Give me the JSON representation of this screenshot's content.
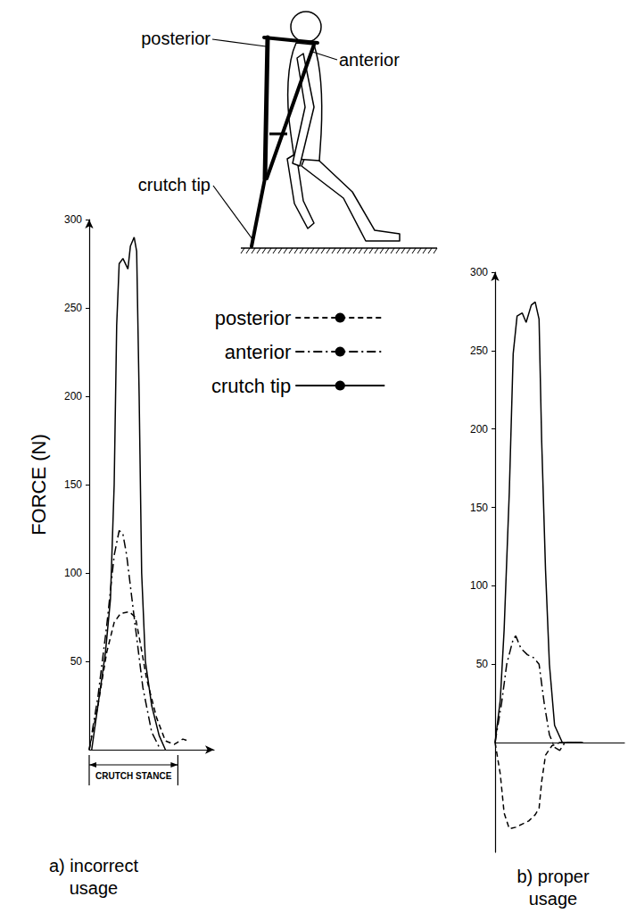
{
  "diagram": {
    "labels": {
      "posterior": "posterior",
      "anterior": "anterior",
      "crutch_tip": "crutch tip"
    }
  },
  "chart_data": [
    {
      "type": "line",
      "title": "a) incorrect usage",
      "ylabel": "FORCE (N)",
      "xlim": [
        0,
        100
      ],
      "ylim": [
        0,
        300
      ],
      "yticks": [
        50,
        100,
        150,
        200,
        250,
        300
      ],
      "tick_labels": "y",
      "grid": false,
      "legend": "top",
      "annotations": [
        {
          "text": "CRUTCH STANCE",
          "x": [
            0,
            71
          ]
        }
      ],
      "series": [
        {
          "name": "posterior",
          "color": "#000000",
          "line_style": "dashed",
          "x": [
            0,
            7,
            14,
            20,
            25,
            32,
            37,
            41,
            46,
            54,
            61,
            68,
            75,
            79
          ],
          "values": [
            0,
            25,
            55,
            72,
            77,
            78,
            75,
            60,
            40,
            18,
            5,
            3,
            6,
            5
          ]
        },
        {
          "name": "anterior",
          "color": "#000000",
          "line_style": "dashdot",
          "x": [
            0,
            7,
            14,
            20,
            24,
            27,
            30,
            36,
            43,
            50,
            57
          ],
          "values": [
            0,
            30,
            70,
            110,
            124,
            122,
            110,
            75,
            35,
            10,
            0
          ]
        },
        {
          "name": "crutch tip",
          "color": "#000000",
          "line_style": "solid",
          "x": [
            2,
            7,
            13,
            17,
            20,
            22,
            24,
            27,
            31,
            33,
            36,
            38,
            40,
            42,
            45,
            50,
            56,
            61
          ],
          "values": [
            0,
            25,
            55,
            85,
            150,
            240,
            275,
            278,
            272,
            285,
            290,
            282,
            200,
            100,
            50,
            25,
            8,
            0
          ]
        }
      ]
    },
    {
      "type": "line",
      "title": "b) proper usage",
      "xlim": [
        0,
        100
      ],
      "ylim": [
        -70,
        300
      ],
      "yticks": [
        50,
        100,
        150,
        200,
        250,
        300
      ],
      "tick_labels": "y",
      "grid": false,
      "legend": "top",
      "series": [
        {
          "name": "posterior",
          "color": "#000000",
          "line_style": "dashed",
          "x": [
            0,
            4,
            7,
            11,
            16,
            21,
            26,
            31,
            34,
            36,
            39,
            44,
            50,
            61,
            68
          ],
          "values": [
            0,
            -20,
            -45,
            -55,
            -54,
            -52,
            -50,
            -46,
            -42,
            -25,
            -8,
            -2,
            0,
            0,
            0
          ]
        },
        {
          "name": "anterior",
          "color": "#000000",
          "line_style": "dashdot",
          "x": [
            0,
            5,
            9,
            14,
            16,
            20,
            25,
            30,
            34,
            38,
            42,
            46,
            50,
            54,
            68
          ],
          "values": [
            0,
            25,
            50,
            66,
            68,
            60,
            56,
            54,
            50,
            25,
            5,
            -3,
            -5,
            0,
            0
          ]
        },
        {
          "name": "crutch tip",
          "color": "#000000",
          "line_style": "solid",
          "x": [
            0,
            4,
            7,
            11,
            14,
            17,
            21,
            24,
            28,
            31,
            34,
            36,
            39,
            42,
            46,
            52,
            68
          ],
          "values": [
            0,
            27,
            72,
            160,
            248,
            272,
            274,
            268,
            279,
            281,
            270,
            193,
            110,
            50,
            11,
            0,
            0
          ]
        }
      ]
    }
  ]
}
